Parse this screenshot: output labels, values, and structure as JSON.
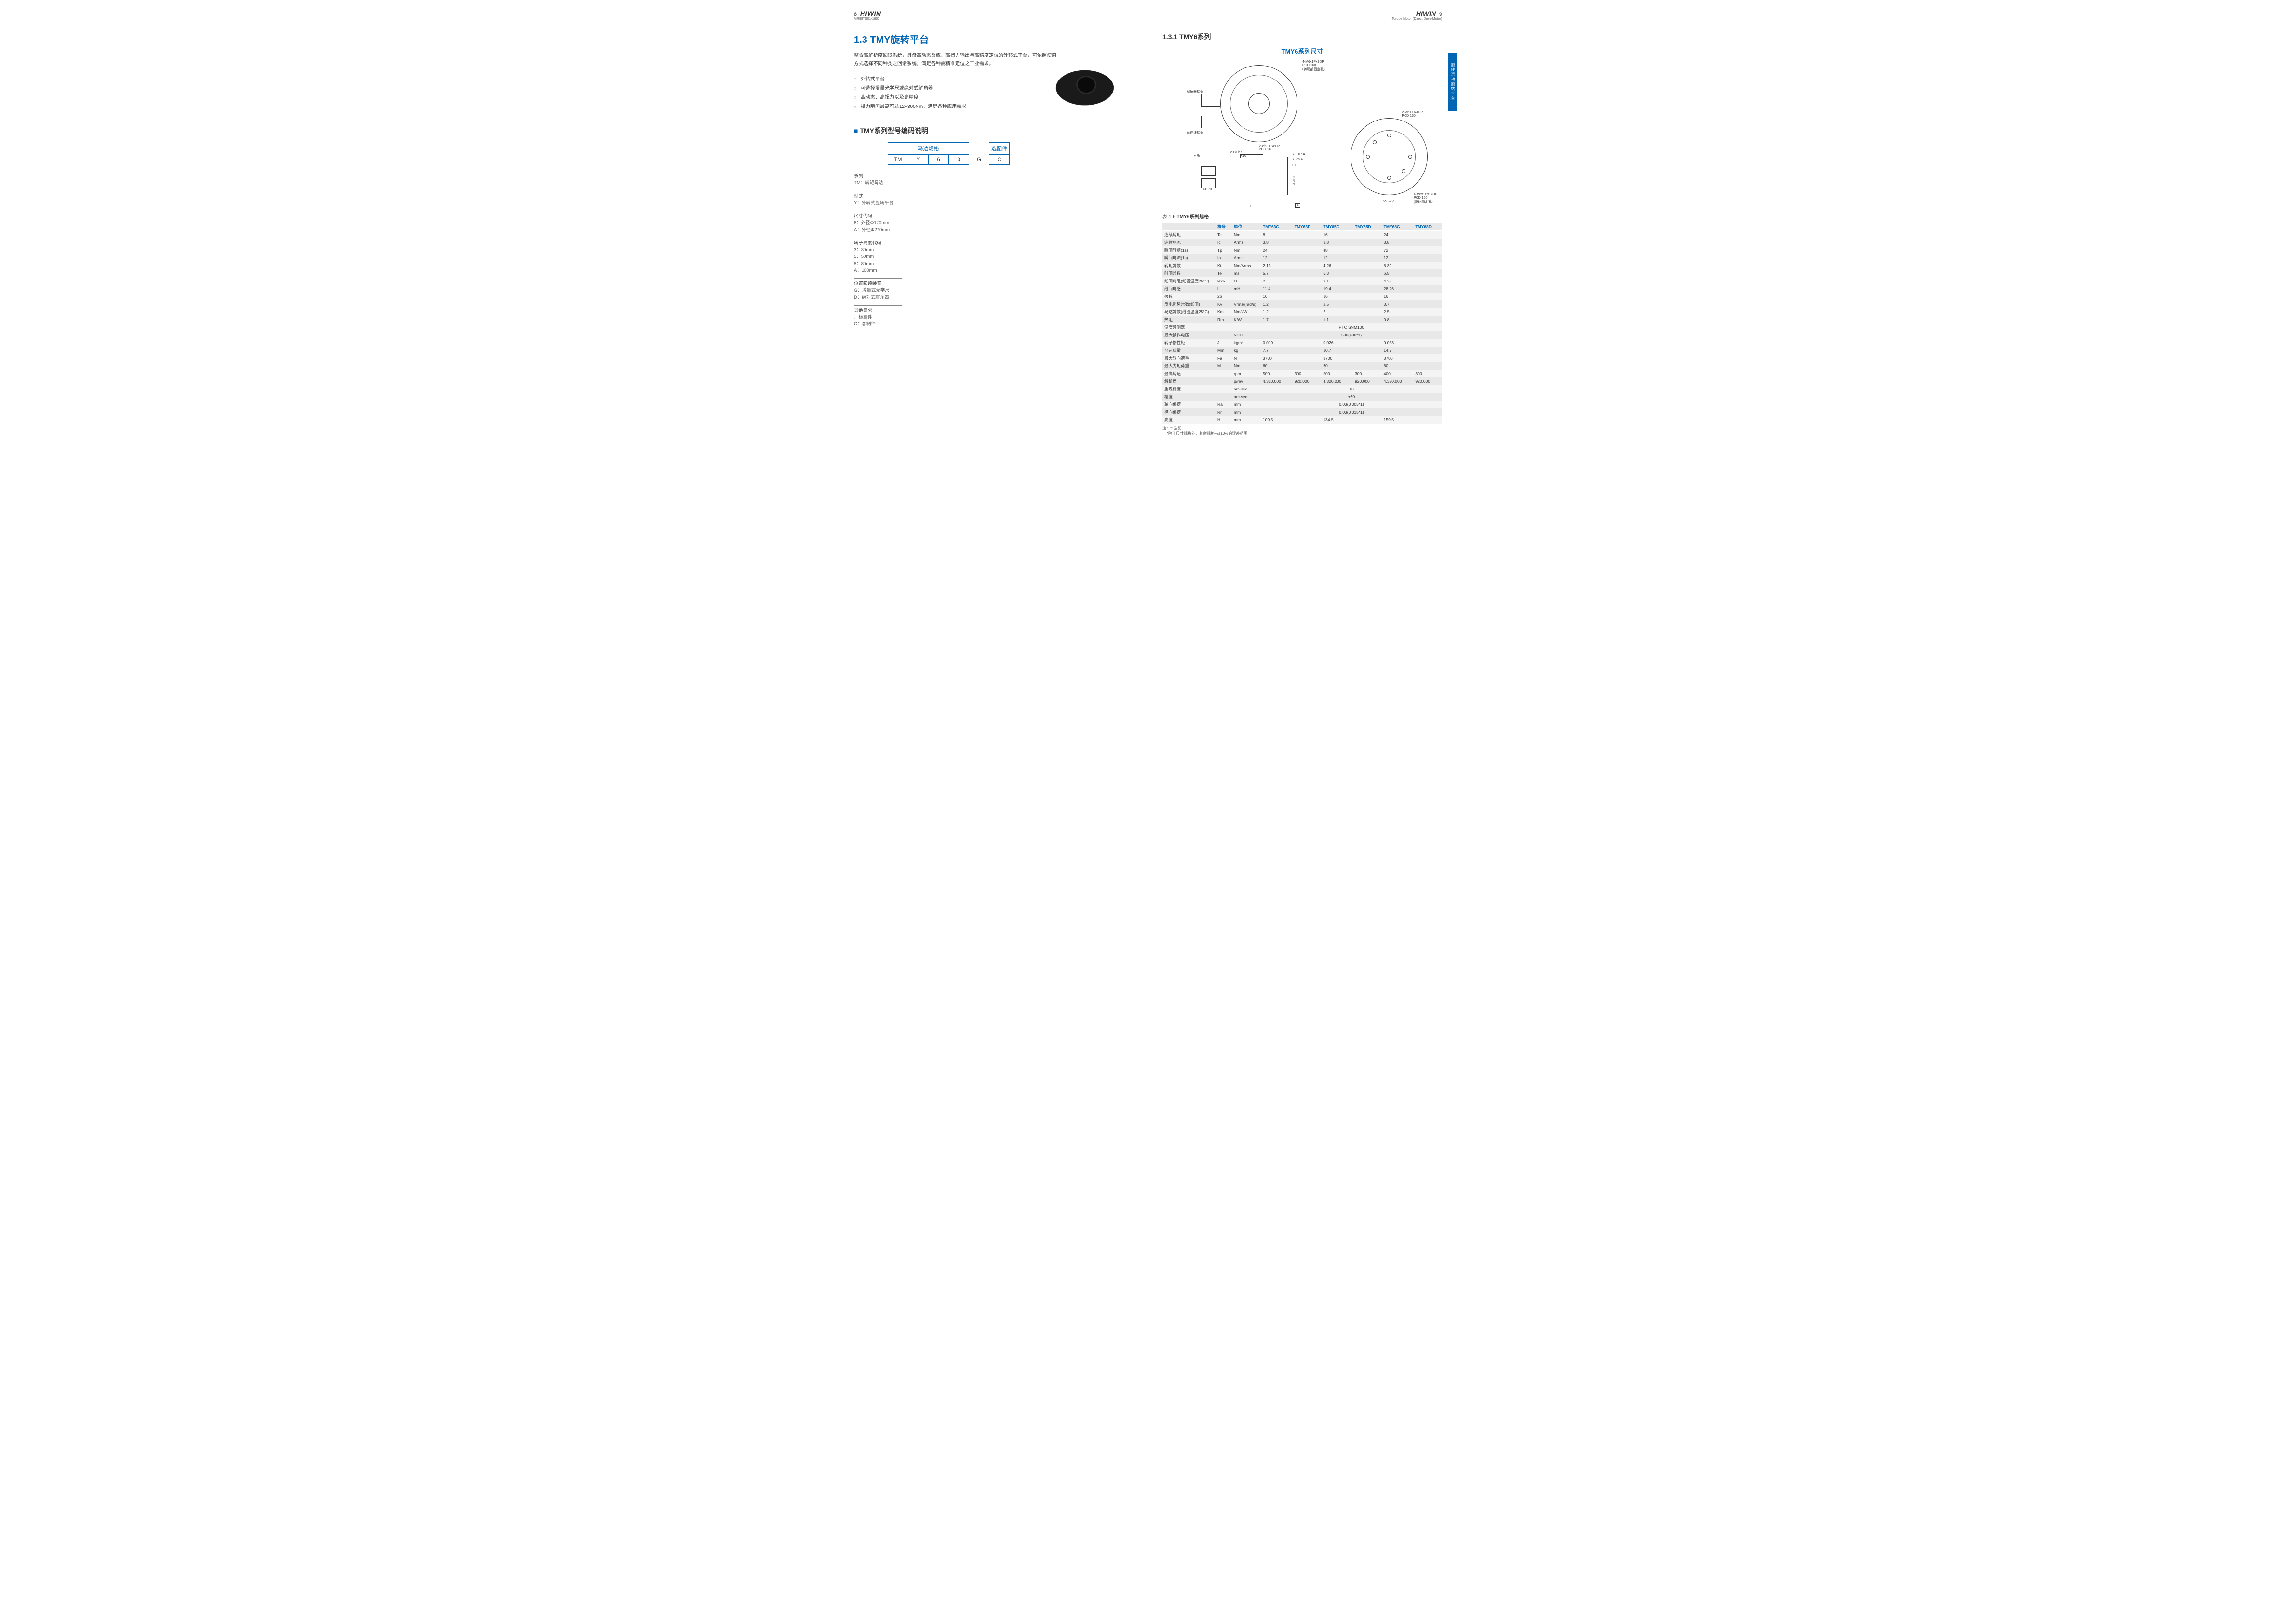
{
  "header": {
    "left_page": "8",
    "right_page": "9",
    "brand": "HIWIN",
    "docid": "MR99TS01-1800",
    "right_subtitle": "Torque Motor (Direct Drive Motor)"
  },
  "side_tab": "旋转运动旋转平台",
  "left": {
    "title": "1.3 TMY旋转平台",
    "intro": "整合高解析度回馈系统，具备高动态反应、高扭力输出与高精度定位的外转式平台，可依照使用方式选择不同种类之回馈系统，满足各种需精准定位之工业需求。",
    "bullets": [
      "外转式平台",
      "可选择增量光学尺或绝对式解角器",
      "高动态、高扭力以及高精度",
      "扭力瞬间最高可达12~300Nm，满足各种应用需求"
    ],
    "subhead": "TMY系列型号编码说明",
    "enc_group1": "马达规格",
    "enc_group2": "选配件",
    "enc_cells": [
      "TM",
      "Y",
      "6",
      "3",
      "G",
      "C"
    ],
    "labels": [
      {
        "h": "系列",
        "d": [
          "TM：转矩马达"
        ]
      },
      {
        "h": "型式",
        "d": [
          "Y：外转式旋转平台"
        ]
      },
      {
        "h": "尺寸代码",
        "d": [
          "6：外径Φ170mm",
          "A：外径Φ270mm"
        ]
      },
      {
        "h": "转子高度代码",
        "d": [
          "3：30mm",
          "5：50mm",
          "8：80mm",
          "A：100mm"
        ]
      },
      {
        "h": "位置回馈装置",
        "d": [
          "G：增量式光学尺",
          "D：绝对式解角器"
        ]
      },
      {
        "h": "其他需求",
        "d": [
          "：标准件",
          "C：客制件"
        ]
      }
    ]
  },
  "right": {
    "subsection": "1.3.1  TMY6系列",
    "dimtitle": "TMY6系列尺寸",
    "diagram_labels": {
      "top_note": "4-M6x1Px9DP\nPCD 160\n(转动部固定孔)",
      "enc_conn": "解角器接头",
      "motor_conn": "马达线接头",
      "bottom_note": "2-Ø6 H9x8DP\nPCD 160",
      "d170h7": "Ø170h7",
      "d45": "Ø45",
      "d170": "Ø170",
      "tol1": "⌖ 0.07 A",
      "tol2": "⌖ Ra A",
      "rr": "⌖ Rr",
      "h66": "H+6.6",
      "ten": "10",
      "x": "X",
      "a": "A",
      "viewx": "View X",
      "vx_top": "2-Ø6 H9x4DP\nPCD 160",
      "vx_bot": "4-M6x1Px12DP\nPCD 160\n(马达固定孔)"
    },
    "spec_caption_prefix": "表 1.6 ",
    "spec_caption": "TMY6系列规格",
    "columns": [
      "",
      "符号",
      "单位",
      "TMY63G",
      "TMY63D",
      "TMY65G",
      "TMY65D",
      "TMY68G",
      "TMY68D"
    ],
    "rows": [
      [
        "连续转矩",
        "Tc",
        "Nm",
        "8",
        "",
        "16",
        "",
        "24",
        ""
      ],
      [
        "连续电流",
        "Ic",
        "Arms",
        "3.8",
        "",
        "3.8",
        "",
        "3.8",
        ""
      ],
      [
        "瞬间转矩(1s)",
        "Tp",
        "Nm",
        "24",
        "",
        "48",
        "",
        "72",
        ""
      ],
      [
        "瞬间电流(1s)",
        "Ip",
        "Arms",
        "12",
        "",
        "12",
        "",
        "12",
        ""
      ],
      [
        "转矩常数",
        "Kt",
        "Nm/Arms",
        "2.13",
        "",
        "4.26",
        "",
        "6.39",
        ""
      ],
      [
        "时间常数",
        "Te",
        "ms",
        "5.7",
        "",
        "6.3",
        "",
        "6.5",
        ""
      ],
      [
        "线间电阻(线圈温度25°C)",
        "R25",
        "Ω",
        "2",
        "",
        "3.1",
        "",
        "4.38",
        ""
      ],
      [
        "线间电感",
        "L",
        "mH",
        "11.4",
        "",
        "19.4",
        "",
        "28.26",
        ""
      ],
      [
        "极数",
        "2p",
        "",
        "16",
        "",
        "16",
        "",
        "16",
        ""
      ],
      [
        "反电动势常数(线间)",
        "Kv",
        "Vrms/(rad/s)",
        "1.2",
        "",
        "2.5",
        "",
        "3.7",
        ""
      ],
      [
        "马达常数(线圈温度25°C)",
        "Km",
        "Nm/√W",
        "1.2",
        "",
        "2",
        "",
        "2.5",
        ""
      ],
      [
        "热阻",
        "Rth",
        "K/W",
        "1.7",
        "",
        "1.1",
        "",
        "0.8",
        ""
      ],
      [
        "温度感测器",
        "",
        "",
        {
          "span": 6,
          "text": "PTC SNM100"
        }
      ],
      [
        "最大操作电压",
        "",
        "VDC",
        {
          "span": 6,
          "text": "500(600*1)"
        }
      ],
      [
        "转子惯性矩",
        "J",
        "kgm²",
        "0.019",
        "",
        "0.026",
        "",
        "0.033",
        ""
      ],
      [
        "马达质量",
        "Mm",
        "kg",
        "7.7",
        "",
        "10.7",
        "",
        "14.7",
        ""
      ],
      [
        "最大轴向荷重",
        "Fa",
        "N",
        "3700",
        "",
        "3700",
        "",
        "3700",
        ""
      ],
      [
        "最大力矩荷重",
        "M",
        "Nm",
        "60",
        "",
        "60",
        "",
        "60",
        ""
      ],
      [
        "最高转速",
        "",
        "rpm",
        "500",
        "300",
        "500",
        "300",
        "400",
        "300"
      ],
      [
        "解析度",
        "",
        "p/rev",
        "4,320,000",
        "920,000",
        "4,320,000",
        "920,000",
        "4,320,000",
        "920,000"
      ],
      [
        "重现精度",
        "",
        "arc-sec",
        {
          "span": 6,
          "text": "±3"
        }
      ],
      [
        "精度",
        "",
        "arc-sec",
        {
          "span": 6,
          "text": "±30"
        }
      ],
      [
        "轴向偏摆",
        "Ra",
        "mm",
        {
          "span": 6,
          "text": "0.03(0.005*1)"
        }
      ],
      [
        "径向偏摆",
        "Rr",
        "mm",
        {
          "span": 6,
          "text": "0.03(0.015*1)"
        }
      ],
      [
        "高度",
        "H",
        "mm",
        "109.5",
        "",
        "134.5",
        "",
        "159.5",
        ""
      ]
    ],
    "note1": "注：*1选配",
    "note2": "*除了尺寸规格外，其余规格有±10%的误差范围"
  }
}
